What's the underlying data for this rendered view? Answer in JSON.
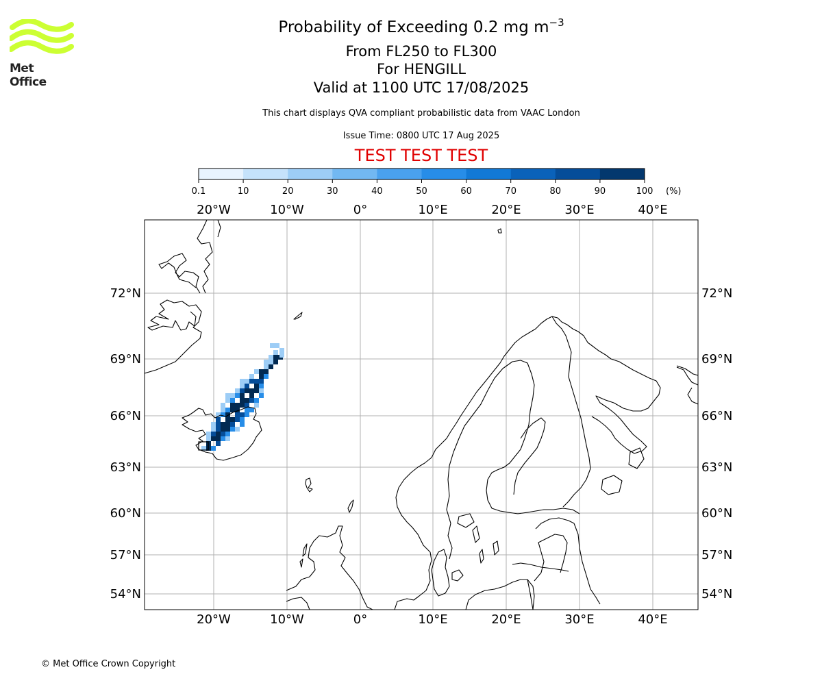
{
  "header": {
    "title_prefix": "Probability of Exceeding 0.2 mg m",
    "title_exponent": "−3",
    "flight_levels": "From FL250 to FL300",
    "volcano": "For HENGILL",
    "valid_time": "Valid at 1100 UTC 17/08/2025",
    "description": "This chart displays QVA compliant probabilistic data from VAAC London",
    "issue_time": "Issue Time: 0800 UTC 17 Aug 2025",
    "test_banner": "TEST TEST TEST"
  },
  "logo": {
    "text": "Met Office",
    "color": "#ccff33"
  },
  "footer": {
    "copyright": "© Met Office Crown Copyright"
  },
  "colorbar": {
    "ticks": [
      "0.1",
      "10",
      "20",
      "30",
      "40",
      "50",
      "60",
      "70",
      "80",
      "90",
      "100"
    ],
    "unit": "(%)",
    "colors": [
      "#e8f3fe",
      "#c5e2fb",
      "#9dcdf6",
      "#72b8f2",
      "#4aa1ee",
      "#278de8",
      "#1279d6",
      "#0a62ba",
      "#054d99",
      "#03386e",
      "#022a52"
    ]
  },
  "map": {
    "lon_labels": [
      "20°W",
      "10°W",
      "0°",
      "10°E",
      "20°E",
      "30°E",
      "40°E"
    ],
    "lat_labels": [
      "72°N",
      "69°N",
      "66°N",
      "63°N",
      "60°N",
      "57°N",
      "54°N"
    ],
    "plume_colors": {
      "light": "#9dcdf6",
      "mid": "#278de8",
      "dark": "#054d99",
      "darkest": "#022a52"
    }
  }
}
